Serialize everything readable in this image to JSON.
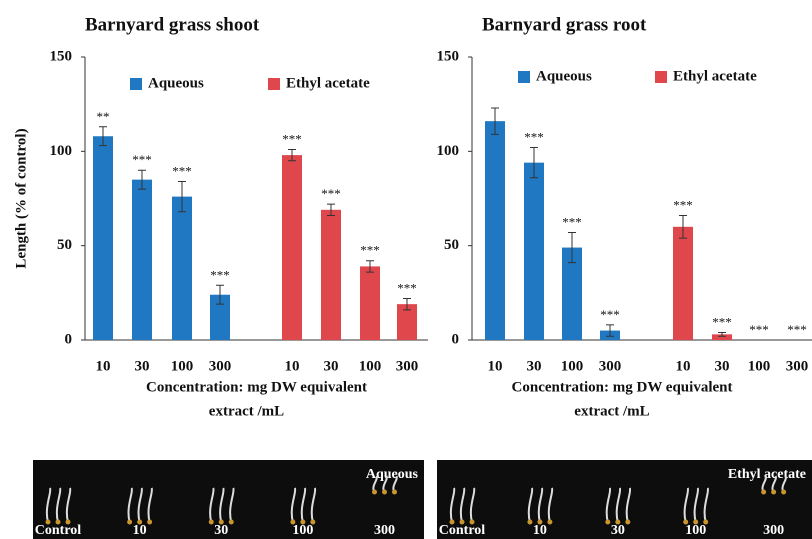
{
  "chart_data": [
    {
      "type": "bar",
      "title": "Barnyard grass shoot",
      "ylabel": "Length (% of control)",
      "xlabel": [
        "Concentration: mg DW equivalent",
        "extract /mL"
      ],
      "categories": [
        "10",
        "30",
        "100",
        "300"
      ],
      "series": [
        {
          "name": "Aqueous",
          "color": "#1f78c1",
          "values": [
            108,
            85,
            76,
            24
          ],
          "errors": [
            5,
            5,
            8,
            5
          ],
          "significance": [
            "**",
            "***",
            "***",
            "***"
          ]
        },
        {
          "name": "Ethyl acetate",
          "color": "#e0474c",
          "values": [
            98,
            69,
            39,
            19
          ],
          "errors": [
            3,
            3,
            3,
            3
          ],
          "significance": [
            "***",
            "***",
            "***",
            "***"
          ]
        }
      ],
      "ylim": [
        0,
        150
      ],
      "yticks": [
        0,
        50,
        100,
        150
      ],
      "grid": false
    },
    {
      "type": "bar",
      "title": "Barnyard grass root",
      "xlabel": [
        "Concentration: mg DW equivalent",
        "extract /mL"
      ],
      "categories": [
        "10",
        "30",
        "100",
        "300"
      ],
      "series": [
        {
          "name": "Aqueous",
          "color": "#1f78c1",
          "values": [
            116,
            94,
            49,
            5
          ],
          "errors": [
            7,
            8,
            8,
            3
          ],
          "significance": [
            null,
            "***",
            "***",
            "***"
          ]
        },
        {
          "name": "Ethyl acetate",
          "color": "#e0474c",
          "values": [
            60,
            3,
            0,
            0
          ],
          "errors": [
            6,
            1,
            0,
            0
          ],
          "significance": [
            "***",
            "***",
            "***",
            "***"
          ]
        }
      ],
      "ylim": [
        0,
        150
      ],
      "yticks": [
        0,
        50,
        100,
        150
      ],
      "grid": false
    }
  ],
  "photos": [
    {
      "title": "Aqueous",
      "labels": [
        "Control",
        "10",
        "30",
        "100",
        "300"
      ]
    },
    {
      "title": "Ethyl acetate",
      "labels": [
        "Control",
        "10",
        "30",
        "100",
        "300"
      ]
    }
  ]
}
